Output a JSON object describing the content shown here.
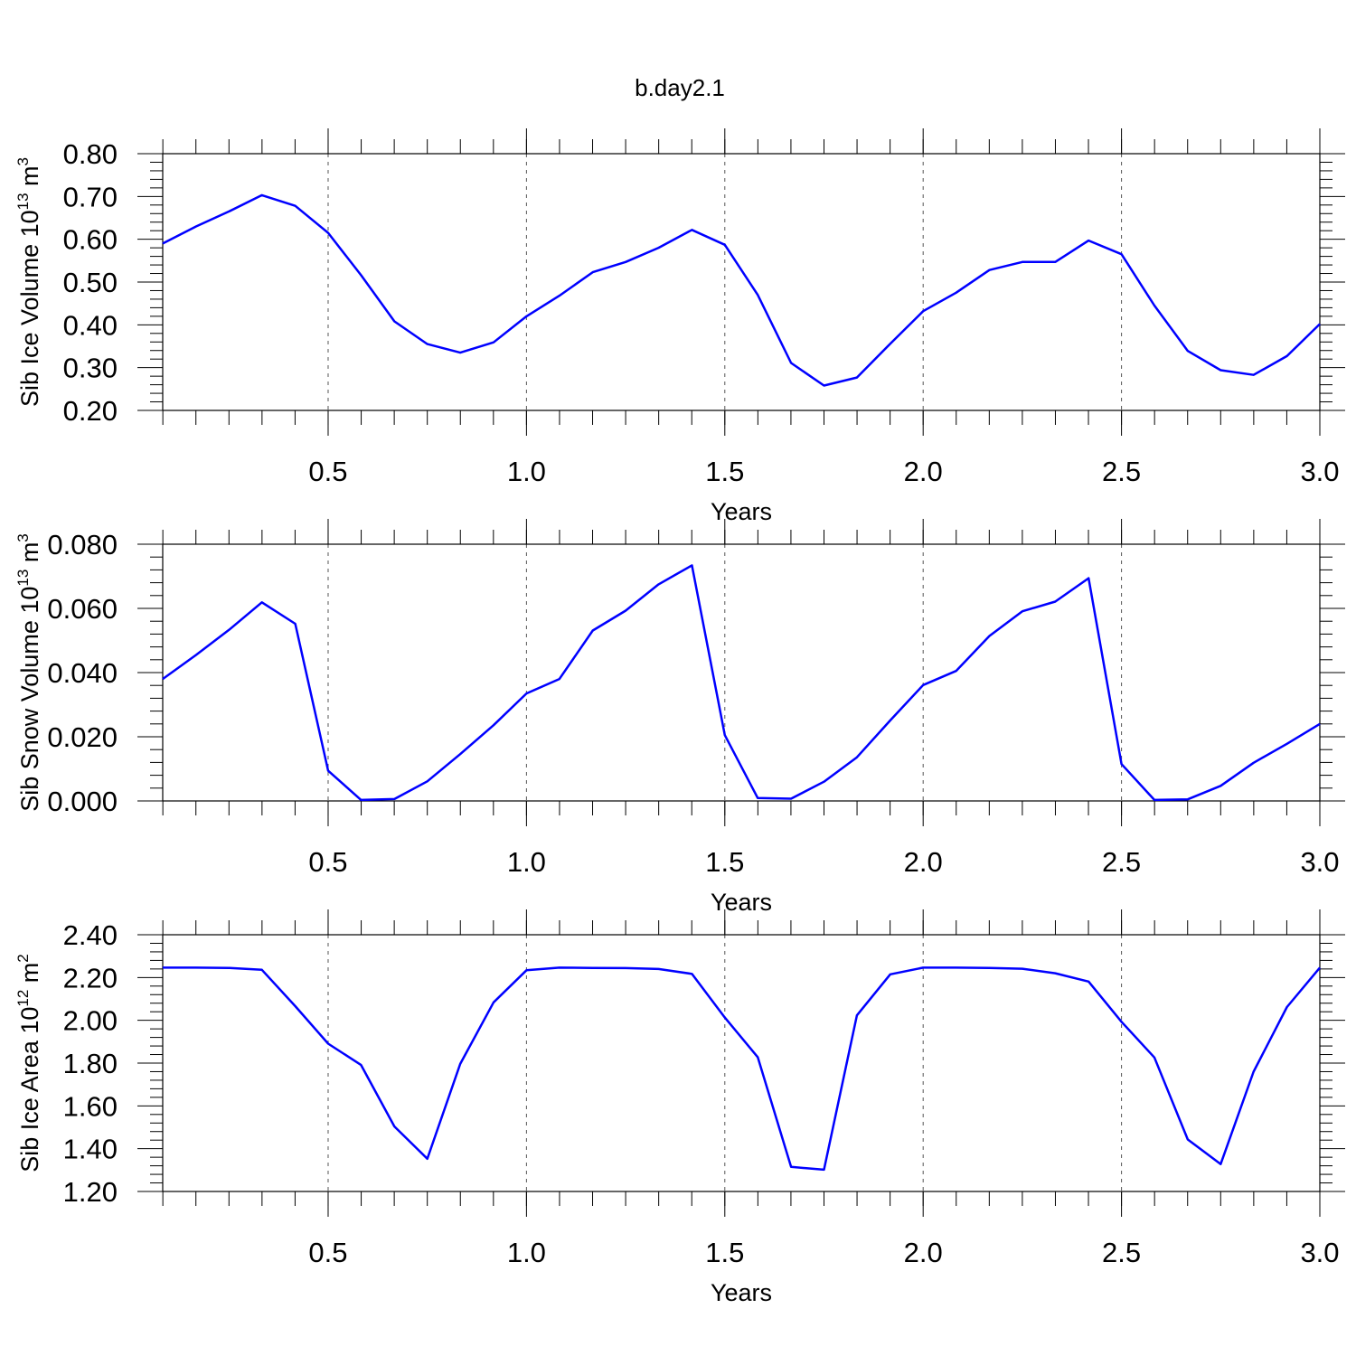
{
  "figure_title": "b.day2.1",
  "chart_data": [
    {
      "type": "line",
      "xlabel": "Years",
      "ylabel": "Sib Ice Volume 10",
      "ylabel_exponent": "13",
      "ylabel_unit": " m",
      "ylabel_unit_exponent": "3",
      "xlim": [
        0.083,
        3.0
      ],
      "ylim": [
        0.2,
        0.8
      ],
      "x_ticks": [
        0.5,
        1.0,
        1.5,
        2.0,
        2.5,
        3.0
      ],
      "x_tick_labels": [
        "0.5",
        "1.0",
        "1.5",
        "2.0",
        "2.5",
        "3.0"
      ],
      "y_ticks": [
        0.2,
        0.3,
        0.4,
        0.5,
        0.6,
        0.7,
        0.8
      ],
      "y_tick_labels": [
        "0.20",
        "0.30",
        "0.40",
        "0.50",
        "0.60",
        "0.70",
        "0.80"
      ],
      "grid": "vertical dashed at major x ticks",
      "series": [
        {
          "color": "#0000ff",
          "x": [
            0.083,
            0.167,
            0.25,
            0.333,
            0.417,
            0.5,
            0.583,
            0.667,
            0.75,
            0.833,
            0.917,
            1.0,
            1.083,
            1.167,
            1.25,
            1.333,
            1.417,
            1.5,
            1.583,
            1.667,
            1.75,
            1.833,
            1.917,
            2.0,
            2.083,
            2.167,
            2.25,
            2.333,
            2.417,
            2.5,
            2.583,
            2.667,
            2.75,
            2.833,
            2.917,
            3.0
          ],
          "y": [
            0.59,
            0.63,
            0.665,
            0.703,
            0.678,
            0.615,
            0.516,
            0.408,
            0.355,
            0.335,
            0.359,
            0.42,
            0.468,
            0.523,
            0.547,
            0.58,
            0.622,
            0.587,
            0.47,
            0.311,
            0.258,
            0.277,
            0.356,
            0.432,
            0.475,
            0.528,
            0.547,
            0.547,
            0.597,
            0.565,
            0.445,
            0.339,
            0.294,
            0.283,
            0.327,
            0.402
          ]
        }
      ]
    },
    {
      "type": "line",
      "xlabel": "Years",
      "ylabel": "Sib Snow Volume 10",
      "ylabel_exponent": "13",
      "ylabel_unit": " m",
      "ylabel_unit_exponent": "3",
      "xlim": [
        0.083,
        3.0
      ],
      "ylim": [
        0.0,
        0.08
      ],
      "x_ticks": [
        0.5,
        1.0,
        1.5,
        2.0,
        2.5,
        3.0
      ],
      "x_tick_labels": [
        "0.5",
        "1.0",
        "1.5",
        "2.0",
        "2.5",
        "3.0"
      ],
      "y_ticks": [
        0.0,
        0.02,
        0.04,
        0.06,
        0.08
      ],
      "y_tick_labels": [
        "0.000",
        "0.020",
        "0.040",
        "0.060",
        "0.080"
      ],
      "grid": "vertical dashed at major x ticks",
      "series": [
        {
          "color": "#0000ff",
          "x": [
            0.083,
            0.167,
            0.25,
            0.333,
            0.417,
            0.5,
            0.583,
            0.667,
            0.75,
            0.833,
            0.917,
            1.0,
            1.083,
            1.167,
            1.25,
            1.333,
            1.417,
            1.5,
            1.583,
            1.667,
            1.75,
            1.833,
            1.917,
            2.0,
            2.083,
            2.167,
            2.25,
            2.333,
            2.417,
            2.5,
            2.583,
            2.667,
            2.75,
            2.833,
            2.917,
            3.0
          ],
          "y": [
            0.038,
            0.0455,
            0.0533,
            0.0619,
            0.0552,
            0.0094,
            0.0003,
            0.0006,
            0.0061,
            0.0146,
            0.0236,
            0.0335,
            0.038,
            0.0531,
            0.0593,
            0.0675,
            0.0734,
            0.0205,
            0.0009,
            0.0007,
            0.006,
            0.0136,
            0.0251,
            0.0361,
            0.0405,
            0.0514,
            0.0591,
            0.0621,
            0.0694,
            0.0115,
            0.0003,
            0.0005,
            0.0047,
            0.0119,
            0.0178,
            0.024
          ]
        }
      ]
    },
    {
      "type": "line",
      "xlabel": "Years",
      "ylabel": "Sib Ice Area 10",
      "ylabel_exponent": "12",
      "ylabel_unit": " m",
      "ylabel_unit_exponent": "2",
      "xlim": [
        0.083,
        3.0
      ],
      "ylim": [
        1.2,
        2.4
      ],
      "x_ticks": [
        0.5,
        1.0,
        1.5,
        2.0,
        2.5,
        3.0
      ],
      "x_tick_labels": [
        "0.5",
        "1.0",
        "1.5",
        "2.0",
        "2.5",
        "3.0"
      ],
      "y_ticks": [
        1.2,
        1.4,
        1.6,
        1.8,
        2.0,
        2.2,
        2.4
      ],
      "y_tick_labels": [
        "1.20",
        "1.40",
        "1.60",
        "1.80",
        "2.00",
        "2.20",
        "2.40"
      ],
      "grid": "vertical dashed at major x ticks",
      "series": [
        {
          "color": "#0000ff",
          "x": [
            0.083,
            0.167,
            0.25,
            0.333,
            0.417,
            0.5,
            0.583,
            0.667,
            0.75,
            0.833,
            0.917,
            1.0,
            1.083,
            1.167,
            1.25,
            1.333,
            1.417,
            1.5,
            1.583,
            1.667,
            1.75,
            1.833,
            1.917,
            2.0,
            2.083,
            2.167,
            2.25,
            2.333,
            2.417,
            2.5,
            2.583,
            2.667,
            2.75,
            2.833,
            2.917,
            3.0
          ],
          "y": [
            2.246,
            2.246,
            2.245,
            2.236,
            2.066,
            1.891,
            1.791,
            1.504,
            1.353,
            1.796,
            2.084,
            2.234,
            2.246,
            2.245,
            2.244,
            2.24,
            2.217,
            2.013,
            1.828,
            1.315,
            1.302,
            2.023,
            2.215,
            2.246,
            2.246,
            2.245,
            2.241,
            2.22,
            2.181,
            1.993,
            1.826,
            1.443,
            1.328,
            1.76,
            2.062,
            2.246
          ]
        }
      ]
    }
  ]
}
